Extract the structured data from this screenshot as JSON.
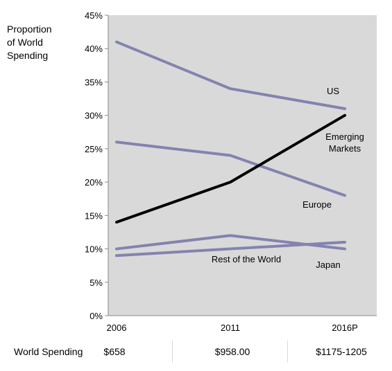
{
  "chart_data": {
    "type": "line",
    "ylabel": "Proportion\nof World\nSpending",
    "xlabel": "",
    "categories": [
      "2006",
      "2011",
      "2016P"
    ],
    "ylim": [
      0,
      45
    ],
    "yticks": [
      "0%",
      "5%",
      "10%",
      "15%",
      "20%",
      "25%",
      "30%",
      "35%",
      "40%",
      "45%"
    ],
    "y_unit": "%",
    "grid": false,
    "background": "#d9d9d9",
    "series": [
      {
        "name": "US",
        "values": [
          41,
          34,
          31
        ],
        "color": "#8383b0"
      },
      {
        "name": "Emerging\nMarkets",
        "values": [
          14,
          20,
          30
        ],
        "color": "#000000"
      },
      {
        "name": "Europe",
        "values": [
          26,
          24,
          18
        ],
        "color": "#8383b0"
      },
      {
        "name": "Rest of the World",
        "values": [
          10,
          12,
          10
        ],
        "color": "#8383b0"
      },
      {
        "name": "Japan",
        "values": [
          9,
          10,
          11
        ],
        "color": "#8383b0"
      }
    ]
  },
  "spending": {
    "label": "World Spending",
    "values": [
      "$658",
      "$958.00",
      "$1175-1205"
    ]
  }
}
